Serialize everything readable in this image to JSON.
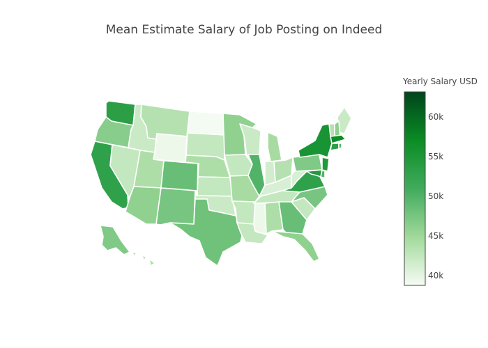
{
  "chart_data": {
    "type": "choropleth",
    "title": "Mean Estimate Salary of Job Posting on Indeed",
    "scope": "usa",
    "colorbar": {
      "title": "Yearly Salary USD",
      "range": [
        38800,
        63200
      ],
      "ticks": [
        {
          "value": 40000,
          "label": "40k"
        },
        {
          "value": 45000,
          "label": "45k"
        },
        {
          "value": 50000,
          "label": "50k"
        },
        {
          "value": 55000,
          "label": "55k"
        },
        {
          "value": 60000,
          "label": "60k"
        }
      ],
      "colorscale": [
        [
          0.0,
          "#f7fcf5"
        ],
        [
          0.25,
          "#a1d99b"
        ],
        [
          0.5,
          "#41ab5d"
        ],
        [
          0.75,
          "#0b8c25"
        ],
        [
          1.0,
          "#00441b"
        ]
      ]
    },
    "states": [
      {
        "code": "WA",
        "value": 53500
      },
      {
        "code": "OR",
        "value": 46500
      },
      {
        "code": "CA",
        "value": 53000
      },
      {
        "code": "NV",
        "value": 42500
      },
      {
        "code": "ID",
        "value": 42000
      },
      {
        "code": "MT",
        "value": 43500
      },
      {
        "code": "WY",
        "value": 39500
      },
      {
        "code": "UT",
        "value": 44000
      },
      {
        "code": "AZ",
        "value": 46000
      },
      {
        "code": "CO",
        "value": 48500
      },
      {
        "code": "NM",
        "value": 47500
      },
      {
        "code": "ND",
        "value": 39000
      },
      {
        "code": "SD",
        "value": 42500
      },
      {
        "code": "NE",
        "value": 44000
      },
      {
        "code": "KS",
        "value": 42500
      },
      {
        "code": "OK",
        "value": 42000
      },
      {
        "code": "TX",
        "value": 48000
      },
      {
        "code": "MN",
        "value": 46000
      },
      {
        "code": "IA",
        "value": 42500
      },
      {
        "code": "MO",
        "value": 44500
      },
      {
        "code": "AR",
        "value": 42500
      },
      {
        "code": "LA",
        "value": 42500
      },
      {
        "code": "WI",
        "value": 42000
      },
      {
        "code": "IL",
        "value": 50000
      },
      {
        "code": "MI",
        "value": 44500
      },
      {
        "code": "IN",
        "value": 41500
      },
      {
        "code": "OH",
        "value": 43500
      },
      {
        "code": "KY",
        "value": 41000
      },
      {
        "code": "TN",
        "value": 42500
      },
      {
        "code": "MS",
        "value": 39500
      },
      {
        "code": "AL",
        "value": 44000
      },
      {
        "code": "GA",
        "value": 48500
      },
      {
        "code": "FL",
        "value": 46000
      },
      {
        "code": "SC",
        "value": 42500
      },
      {
        "code": "NC",
        "value": 47500
      },
      {
        "code": "VA",
        "value": 53000
      },
      {
        "code": "WV",
        "value": 41000
      },
      {
        "code": "PA",
        "value": 47000
      },
      {
        "code": "NY",
        "value": 55500
      },
      {
        "code": "ME",
        "value": 42000
      },
      {
        "code": "VT",
        "value": 43500
      },
      {
        "code": "NH",
        "value": 46000
      },
      {
        "code": "MA",
        "value": 57000
      },
      {
        "code": "CT",
        "value": 53500
      },
      {
        "code": "RI",
        "value": 50000
      },
      {
        "code": "NJ",
        "value": 54500
      },
      {
        "code": "DE",
        "value": 50000
      },
      {
        "code": "MD",
        "value": 54500
      },
      {
        "code": "AK",
        "value": 47000
      },
      {
        "code": "HI",
        "value": 44000
      }
    ]
  }
}
